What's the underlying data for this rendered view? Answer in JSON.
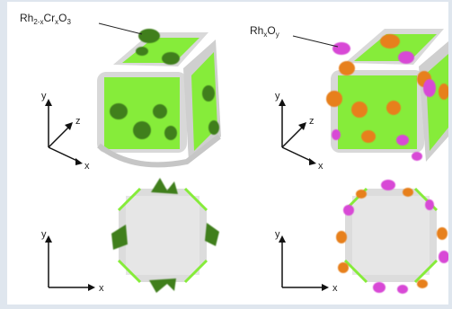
{
  "figure": {
    "left_label": {
      "main": "Rh",
      "sub1": "2-x",
      "mid": "Cr",
      "sub2": "x",
      "end": "O",
      "sub3": "3"
    },
    "right_label": {
      "main": "Rh",
      "sub1": "x",
      "mid": "O",
      "sub2": "y"
    },
    "axis_labels": {
      "x": "x",
      "y": "y",
      "z": "z"
    },
    "colors": {
      "facet_green": "#88ee3c",
      "facet_gray": "#d6d6d6",
      "cocatalyst_dark_green": "#3f7f1e",
      "cocatalyst_orange": "#e7801f",
      "cocatalyst_magenta": "#d84ad6"
    }
  }
}
